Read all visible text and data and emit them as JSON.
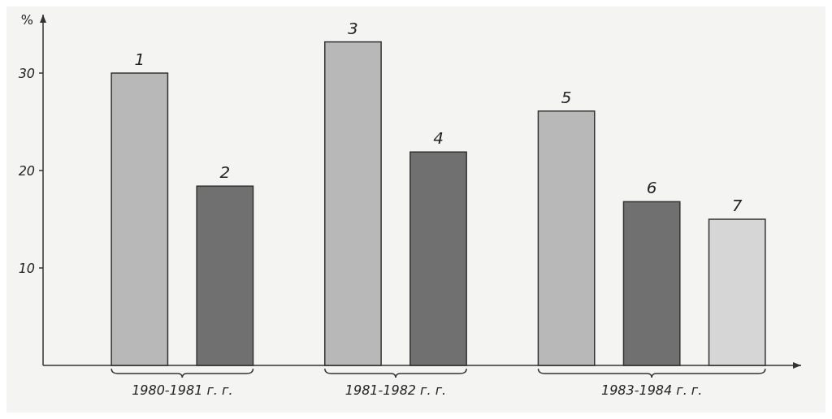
{
  "chart_data": {
    "type": "bar",
    "ylabel": "%",
    "categories": [
      "1980-1981 г. г.",
      "1981-1982 г. г.",
      "1983-1984 г. г."
    ],
    "series": [
      {
        "name": "1",
        "color": "#b8b8b8",
        "values": [
          30,
          null,
          null
        ]
      },
      {
        "name": "2",
        "color": "#707070",
        "values": [
          18.4,
          null,
          null
        ]
      },
      {
        "name": "3",
        "color": "#b8b8b8",
        "values": [
          null,
          33.2,
          null
        ]
      },
      {
        "name": "4",
        "color": "#707070",
        "values": [
          null,
          21.9,
          null
        ]
      },
      {
        "name": "5",
        "color": "#b8b8b8",
        "values": [
          null,
          null,
          26.1
        ]
      },
      {
        "name": "6",
        "color": "#707070",
        "values": [
          null,
          null,
          16.8
        ]
      },
      {
        "name": "7",
        "color": "#d6d6d6",
        "values": [
          null,
          null,
          15
        ]
      }
    ],
    "ylim": [
      0,
      36
    ],
    "yticks": [
      10,
      20,
      30
    ],
    "grid": false
  }
}
